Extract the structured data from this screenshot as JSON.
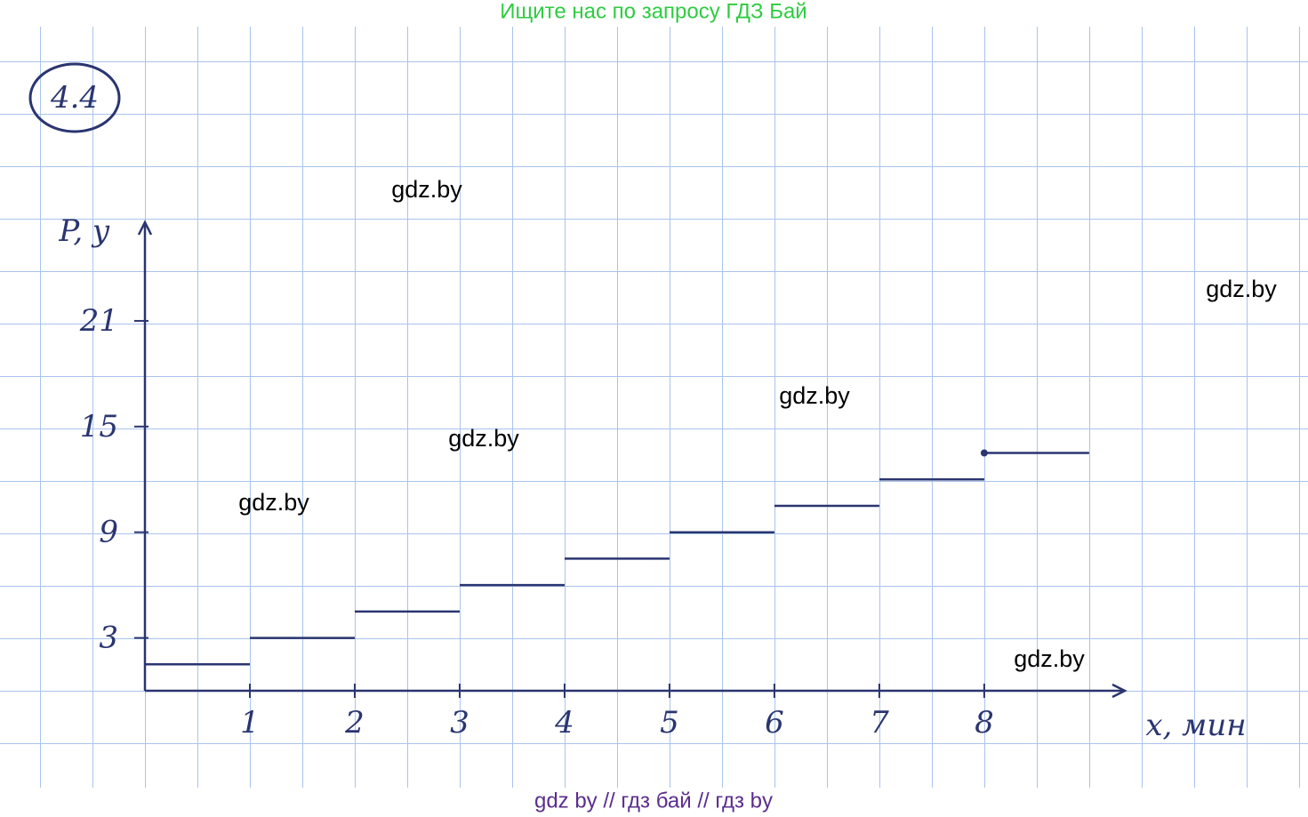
{
  "banner": "Ищите нас по запросу ГДЗ Бай",
  "problem": "4.4",
  "watermarks": [
    "gdz.by",
    "gdz.by",
    "gdz.by",
    "gdz.by",
    "gdz.by",
    "gdz.by"
  ],
  "footer": "gdz by  //  гдз бай  //  гдз by",
  "chart_data": {
    "type": "step",
    "y_label": "P, у",
    "x_label": "x, мин",
    "x": [
      0,
      1,
      2,
      3,
      4,
      5,
      6,
      7,
      8
    ],
    "series": [
      {
        "name": "P",
        "color": "#2a3570",
        "values": [
          1.5,
          3,
          4.5,
          6,
          7.5,
          9,
          10.5,
          12,
          13.5
        ]
      }
    ],
    "xlim": [
      0,
      9.34
    ],
    "ylim": [
      0,
      26.6
    ],
    "xticks": [
      1,
      2,
      3,
      4,
      5,
      6,
      7,
      8
    ],
    "yticks": [
      3,
      9,
      15,
      21
    ]
  }
}
